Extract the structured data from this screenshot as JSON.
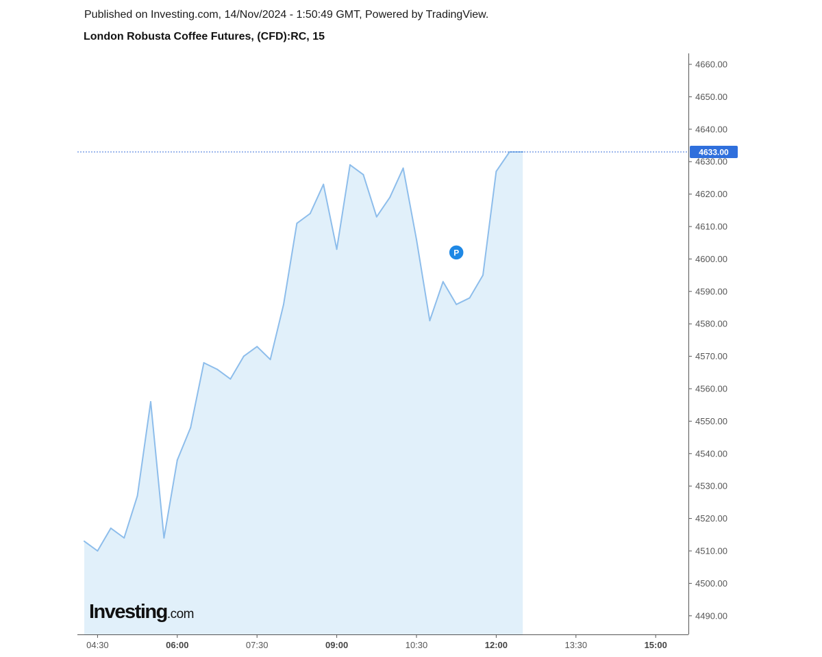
{
  "header": {
    "published": "Published on Investing.com, 14/Nov/2024 - 1:50:49 GMT, Powered by TradingView.",
    "title": "London Robusta Coffee Futures, (CFD):RC, 15"
  },
  "logo": {
    "main": "Investing",
    "suffix": ".com"
  },
  "colors": {
    "line": "#8dbdeb",
    "fill": "#e1f0fa",
    "price_line": "#3a6fd8",
    "price_badge": "#2f6fdc",
    "marker": "#1e88e5",
    "axis": "#555555"
  },
  "chart_data": {
    "type": "area",
    "x": [
      "04:15",
      "04:30",
      "04:45",
      "05:00",
      "05:15",
      "05:30",
      "05:45",
      "06:00",
      "06:15",
      "06:30",
      "06:45",
      "07:00",
      "07:15",
      "07:30",
      "07:45",
      "08:00",
      "08:15",
      "08:30",
      "08:45",
      "09:00",
      "09:15",
      "09:30",
      "09:45",
      "10:00",
      "10:15",
      "10:30",
      "10:45",
      "11:00",
      "11:15",
      "11:30",
      "11:45",
      "12:00",
      "12:15",
      "12:30"
    ],
    "values": [
      4513,
      4510,
      4517,
      4514,
      4527,
      4556,
      4514,
      4538,
      4548,
      4568,
      4566,
      4563,
      4570,
      4573,
      4569,
      4586,
      4611,
      4614,
      4623,
      4603,
      4629,
      4626,
      4613,
      4619,
      4628,
      4606,
      4581,
      4593,
      4586,
      4588,
      4595,
      4627,
      4633,
      4633
    ],
    "ylim": [
      4484,
      4662
    ],
    "y_ticks": [
      "4660.00",
      "4650.00",
      "4640.00",
      "4630.00",
      "4620.00",
      "4610.00",
      "4600.00",
      "4590.00",
      "4580.00",
      "4570.00",
      "4560.00",
      "4550.00",
      "4540.00",
      "4530.00",
      "4520.00",
      "4510.00",
      "4500.00",
      "4490.00"
    ],
    "x_ticks": [
      {
        "label": "04:30",
        "major": false
      },
      {
        "label": "06:00",
        "major": true
      },
      {
        "label": "07:30",
        "major": false
      },
      {
        "label": "09:00",
        "major": true
      },
      {
        "label": "10:30",
        "major": false
      },
      {
        "label": "12:00",
        "major": true
      },
      {
        "label": "13:30",
        "major": false
      },
      {
        "label": "15:00",
        "major": true
      }
    ],
    "current_price": 4633,
    "current_price_label": "4633.00",
    "marker": {
      "label": "P",
      "x": "11:15",
      "value": 4602
    }
  }
}
